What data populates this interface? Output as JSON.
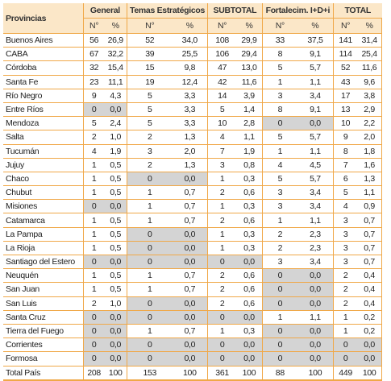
{
  "table": {
    "groups": [
      "Provincias",
      "General",
      "Temas Estratégicos",
      "SUBTOTAL",
      "Fortalecim. I+D+i",
      "TOTAL"
    ],
    "subheaders": [
      "N°",
      "%"
    ],
    "rows": [
      [
        "Buenos Aires",
        56,
        "26,9",
        52,
        "34,0",
        108,
        "29,9",
        33,
        "37,5",
        141,
        "31,4"
      ],
      [
        "CABA",
        67,
        "32,2",
        39,
        "25,5",
        106,
        "29,4",
        8,
        "9,1",
        114,
        "25,4"
      ],
      [
        "Córdoba",
        32,
        "15,4",
        15,
        "9,8",
        47,
        "13,0",
        5,
        "5,7",
        52,
        "11,6"
      ],
      [
        "Santa Fe",
        23,
        "11,1",
        19,
        "12,4",
        42,
        "11,6",
        1,
        "1,1",
        43,
        "9,6"
      ],
      [
        "Río Negro",
        9,
        "4,3",
        5,
        "3,3",
        14,
        "3,9",
        3,
        "3,4",
        17,
        "3,8"
      ],
      [
        "Entre Ríos",
        0,
        "0,0",
        5,
        "3,3",
        5,
        "1,4",
        8,
        "9,1",
        13,
        "2,9"
      ],
      [
        "Mendoza",
        5,
        "2,4",
        5,
        "3,3",
        10,
        "2,8",
        0,
        "0,0",
        10,
        "2,2"
      ],
      [
        "Salta",
        2,
        "1,0",
        2,
        "1,3",
        4,
        "1,1",
        5,
        "5,7",
        9,
        "2,0"
      ],
      [
        "Tucumán",
        4,
        "1,9",
        3,
        "2,0",
        7,
        "1,9",
        1,
        "1,1",
        8,
        "1,8"
      ],
      [
        "Jujuy",
        1,
        "0,5",
        2,
        "1,3",
        3,
        "0,8",
        4,
        "4,5",
        7,
        "1,6"
      ],
      [
        "Chaco",
        1,
        "0,5",
        0,
        "0,0",
        1,
        "0,3",
        5,
        "5,7",
        6,
        "1,3"
      ],
      [
        "Chubut",
        1,
        "0,5",
        1,
        "0,7",
        2,
        "0,6",
        3,
        "3,4",
        5,
        "1,1"
      ],
      [
        "Misiones",
        0,
        "0,0",
        1,
        "0,7",
        1,
        "0,3",
        3,
        "3,4",
        4,
        "0,9"
      ],
      [
        "Catamarca",
        1,
        "0,5",
        1,
        "0,7",
        2,
        "0,6",
        1,
        "1,1",
        3,
        "0,7"
      ],
      [
        "La Pampa",
        1,
        "0,5",
        0,
        "0,0",
        1,
        "0,3",
        2,
        "2,3",
        3,
        "0,7"
      ],
      [
        "La Rioja",
        1,
        "0,5",
        0,
        "0,0",
        1,
        "0,3",
        2,
        "2,3",
        3,
        "0,7"
      ],
      [
        "Santiago del Estero",
        0,
        "0,0",
        0,
        "0,0",
        0,
        "0,0",
        3,
        "3,4",
        3,
        "0,7"
      ],
      [
        "Neuquén",
        1,
        "0,5",
        1,
        "0,7",
        2,
        "0,6",
        0,
        "0,0",
        2,
        "0,4"
      ],
      [
        "San Juan",
        1,
        "0,5",
        1,
        "0,7",
        2,
        "0,6",
        0,
        "0,0",
        2,
        "0,4"
      ],
      [
        "San Luis",
        2,
        "1,0",
        0,
        "0,0",
        2,
        "0,6",
        0,
        "0,0",
        2,
        "0,4"
      ],
      [
        "Santa Cruz",
        0,
        "0,0",
        0,
        "0,0",
        0,
        "0,0",
        1,
        "1,1",
        1,
        "0,2"
      ],
      [
        "Tierra del Fuego",
        0,
        "0,0",
        1,
        "0,7",
        1,
        "0,3",
        0,
        "0,0",
        1,
        "0,2"
      ],
      [
        "Corrientes",
        0,
        "0,0",
        0,
        "0,0",
        0,
        "0,0",
        0,
        "0,0",
        0,
        "0,0"
      ],
      [
        "Formosa",
        0,
        "0,0",
        0,
        "0,0",
        0,
        "0,0",
        0,
        "0,0",
        0,
        "0,0"
      ],
      [
        "Total País",
        208,
        100,
        153,
        100,
        361,
        100,
        88,
        100,
        449,
        100
      ]
    ]
  }
}
